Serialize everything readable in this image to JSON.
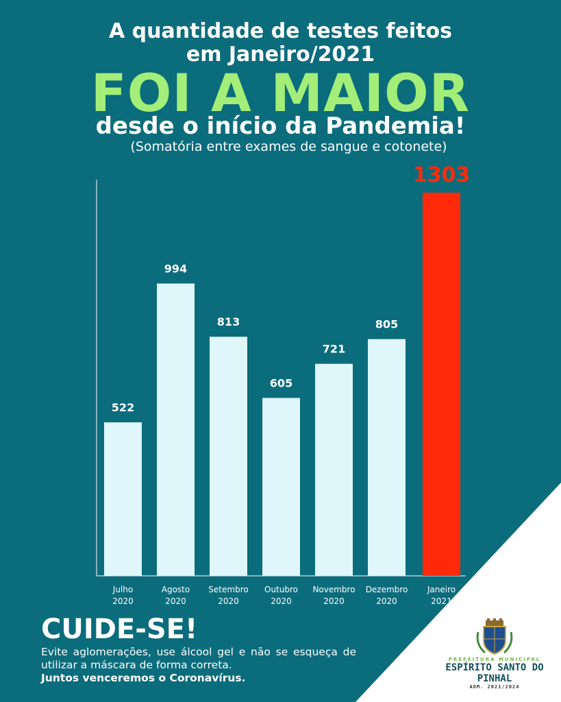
{
  "header": {
    "line1": "A quantidade de testes feitos",
    "line2": "em Janeiro/2021",
    "highlight": "FOI A MAIOR",
    "line3": "desde o início da Pandemia!",
    "subtitle": "(Somatória entre exames de sangue e cotonete)"
  },
  "chart_data": {
    "type": "bar",
    "categories": [
      [
        "Julho",
        "2020"
      ],
      [
        "Agosto",
        "2020"
      ],
      [
        "Setembro",
        "2020"
      ],
      [
        "Outubro",
        "2020"
      ],
      [
        "Novembro",
        "2020"
      ],
      [
        "Dezembro",
        "2020"
      ],
      [
        "Janeiro",
        "2021"
      ]
    ],
    "values": [
      522,
      994,
      813,
      605,
      721,
      805,
      1303
    ],
    "value_labels": [
      "522",
      "994",
      "813",
      "605",
      "721",
      "805",
      "1303"
    ],
    "highlight_index": 6,
    "ylim": [
      0,
      1303
    ],
    "grid": false,
    "bar_color": "#dff6fb",
    "highlight_color": "#ff2a0a"
  },
  "footer": {
    "title": "CUIDE-SE!",
    "text": "Evite aglomerações, use álcool gel e não se esqueça de utilizar a máscara de forma correta.",
    "bold_text": "Juntos venceremos o Coronavírus."
  },
  "logo": {
    "pre": "PREFEITURA MUNICIPAL",
    "name": "ESPÍRITO SANTO DO PINHAL",
    "adm": "ADM. 2021/2024"
  },
  "colors": {
    "background": "#0b6c7c",
    "highlight_text": "#a3ee78"
  }
}
